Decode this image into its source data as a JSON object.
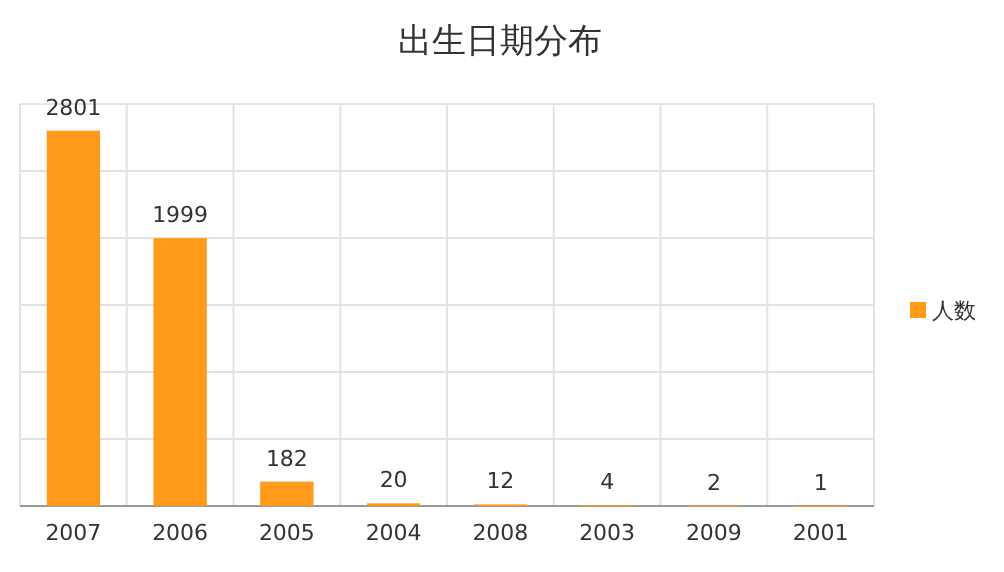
{
  "chart_data": {
    "type": "bar",
    "title": "出生日期分布",
    "categories": [
      "2007",
      "2006",
      "2005",
      "2004",
      "2008",
      "2003",
      "2009",
      "2001"
    ],
    "series": [
      {
        "name": "人数",
        "color": "#ff9a1a",
        "values": [
          2801,
          1999,
          182,
          20,
          12,
          4,
          2,
          1
        ]
      }
    ],
    "ylim": [
      0,
      3000
    ],
    "yticks": [
      {
        "value": 0,
        "label": null
      },
      {
        "value": 500,
        "label": null
      },
      {
        "value": 1000,
        "label": null
      },
      {
        "value": 1500,
        "label": null
      },
      {
        "value": 2000,
        "label": null
      },
      {
        "value": 2500,
        "label": null
      },
      {
        "value": 3000,
        "label": null
      }
    ],
    "tick_labels": "x",
    "grid": true,
    "data_labels": true,
    "legend": "right"
  }
}
